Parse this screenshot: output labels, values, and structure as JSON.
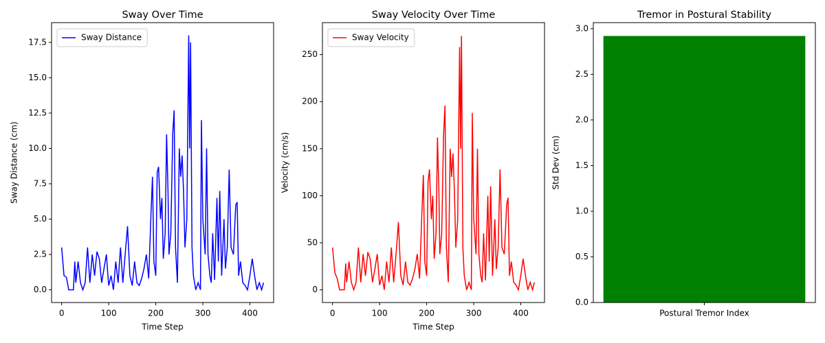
{
  "chart_data": [
    {
      "type": "line",
      "title": "Sway Over Time",
      "xlabel": "Time Step",
      "ylabel": "Sway Distance (cm)",
      "x": [
        0,
        5,
        10,
        15,
        20,
        25,
        28,
        30,
        35,
        40,
        45,
        50,
        55,
        60,
        65,
        70,
        75,
        80,
        85,
        90,
        95,
        100,
        105,
        110,
        115,
        120,
        125,
        130,
        135,
        140,
        145,
        150,
        155,
        160,
        165,
        170,
        175,
        180,
        185,
        190,
        193,
        196,
        200,
        203,
        206,
        210,
        213,
        216,
        220,
        223,
        226,
        228,
        232,
        236,
        239,
        242,
        246,
        250,
        253,
        256,
        259,
        262,
        266,
        270,
        272,
        274,
        277,
        280,
        285,
        290,
        295,
        297,
        300,
        305,
        308,
        311,
        315,
        318,
        321,
        325,
        330,
        333,
        336,
        340,
        345,
        348,
        352,
        356,
        360,
        365,
        370,
        373,
        376,
        380,
        385,
        390,
        395,
        400,
        405,
        410,
        415,
        420,
        425,
        429
      ],
      "series": [
        {
          "name": "Sway Distance",
          "color": "#0000ff",
          "values": [
            3,
            1,
            0.9,
            0,
            0,
            0,
            2,
            0.5,
            2,
            0.5,
            0,
            0.5,
            3,
            0.5,
            2.5,
            1,
            2.7,
            2.2,
            0.5,
            1.5,
            2.5,
            0.3,
            1,
            0,
            2,
            0.5,
            3,
            0.5,
            2.5,
            4.5,
            1,
            0.3,
            2,
            0.5,
            0.3,
            0.8,
            1.5,
            2.5,
            0.8,
            5.5,
            8,
            2,
            1,
            8.3,
            8.7,
            5,
            6.5,
            2.2,
            4,
            11,
            7,
            2.5,
            4,
            11,
            12.7,
            3,
            0.5,
            10,
            8,
            9.5,
            7,
            3,
            5,
            18,
            10,
            17.5,
            3,
            1,
            0,
            0.5,
            0,
            12,
            5,
            2.5,
            10,
            2.5,
            1,
            0.5,
            4,
            0.7,
            6.5,
            2,
            7,
            1,
            5,
            1.5,
            3,
            8.5,
            3,
            2.5,
            6,
            6.2,
            1,
            2,
            0.5,
            0.3,
            0,
            1,
            2.2,
            1,
            0,
            0.5,
            0,
            0.5
          ]
        }
      ],
      "xlim": [
        -21.45,
        450.45
      ],
      "xticks": [
        0,
        100,
        200,
        300,
        400
      ],
      "ylim": [
        -0.9,
        18.9
      ],
      "yticks": [
        {
          "value": 0,
          "label": "0.0"
        },
        2.5,
        {
          "value": 5,
          "label": "5.0"
        },
        7.5,
        {
          "value": 10,
          "label": "10.0"
        },
        12.5,
        {
          "value": 15,
          "label": "15.0"
        },
        17.5
      ],
      "legend": "upper left"
    },
    {
      "type": "line",
      "title": "Sway Velocity Over Time",
      "xlabel": "Time Step",
      "ylabel": "Velocity (cm/s)",
      "x": [
        0,
        5,
        10,
        15,
        20,
        25,
        28,
        30,
        35,
        40,
        45,
        50,
        55,
        60,
        65,
        70,
        75,
        80,
        85,
        90,
        95,
        100,
        105,
        110,
        115,
        120,
        125,
        130,
        135,
        140,
        145,
        150,
        155,
        160,
        165,
        170,
        175,
        180,
        185,
        190,
        193,
        196,
        200,
        203,
        206,
        210,
        213,
        216,
        220,
        223,
        226,
        228,
        232,
        236,
        239,
        242,
        246,
        250,
        253,
        256,
        259,
        262,
        266,
        270,
        272,
        274,
        277,
        280,
        285,
        290,
        295,
        297,
        300,
        305,
        308,
        311,
        315,
        318,
        321,
        325,
        330,
        333,
        336,
        340,
        345,
        348,
        352,
        356,
        360,
        365,
        370,
        373,
        376,
        380,
        385,
        390,
        395,
        400,
        405,
        410,
        415,
        420,
        425,
        429
      ],
      "series": [
        {
          "name": "Sway Velocity",
          "color": "#ff0000",
          "values": [
            45,
            18,
            12,
            0,
            0,
            0,
            28,
            8,
            30,
            8,
            0,
            8,
            45,
            8,
            38,
            15,
            40,
            33,
            8,
            22,
            38,
            5,
            15,
            0,
            30,
            8,
            45,
            8,
            38,
            72,
            15,
            5,
            30,
            8,
            5,
            12,
            22,
            38,
            12,
            83,
            122,
            30,
            15,
            115,
            128,
            75,
            100,
            33,
            60,
            162,
            105,
            38,
            60,
            165,
            196,
            45,
            8,
            150,
            120,
            145,
            105,
            45,
            75,
            258,
            150,
            270,
            45,
            15,
            0,
            8,
            0,
            188,
            75,
            38,
            150,
            38,
            15,
            8,
            60,
            10,
            100,
            30,
            110,
            15,
            75,
            22,
            45,
            128,
            45,
            38,
            90,
            98,
            15,
            30,
            8,
            5,
            0,
            15,
            33,
            15,
            0,
            8,
            0,
            8
          ]
        }
      ],
      "xlim": [
        -21.45,
        450.45
      ],
      "xticks": [
        0,
        100,
        200,
        300,
        400
      ],
      "ylim": [
        -13.5,
        284
      ],
      "yticks": [
        0,
        50,
        100,
        150,
        200,
        250
      ],
      "legend": "upper left"
    },
    {
      "type": "bar",
      "title": "Tremor in Postural Stability",
      "ylabel": "Std Dev (cm)",
      "categories": [
        "Postural Tremor Index"
      ],
      "values": [
        2.92
      ],
      "color": "#008000",
      "ylim": [
        0,
        3.066
      ],
      "yticks": [
        {
          "value": 0,
          "label": "0.0"
        },
        0.5,
        {
          "value": 1,
          "label": "1.0"
        },
        1.5,
        {
          "value": 2,
          "label": "2.0"
        },
        2.5,
        {
          "value": 3,
          "label": "3.0"
        }
      ]
    }
  ]
}
